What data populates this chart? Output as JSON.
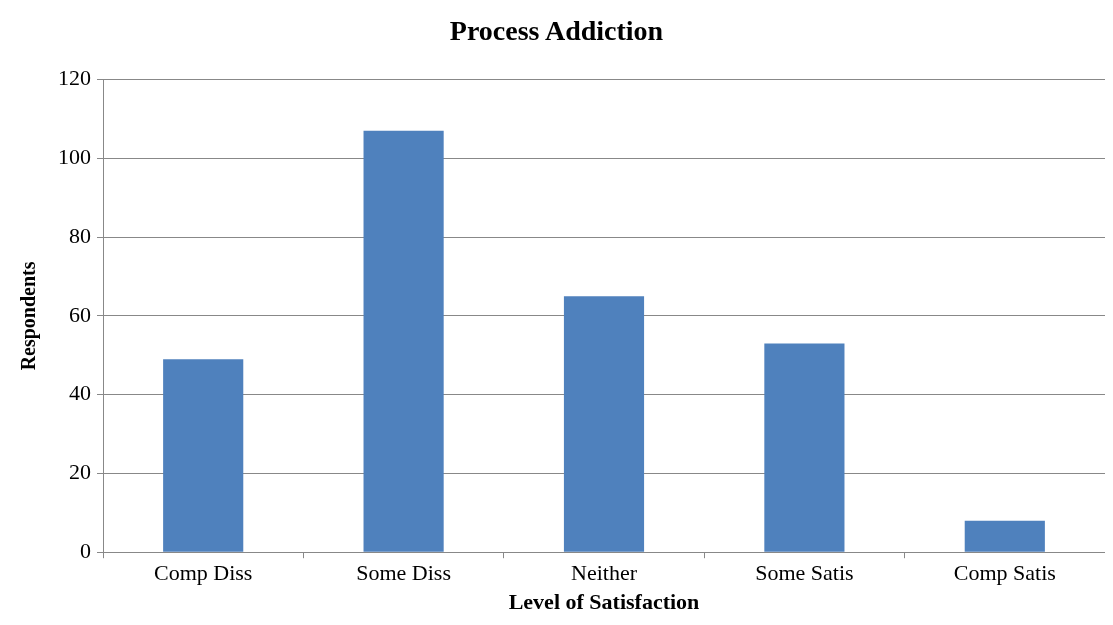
{
  "chart_data": {
    "type": "bar",
    "title": "Process Addiction",
    "xlabel": "Level of Satisfaction",
    "ylabel": "Respondents",
    "categories": [
      "Comp Diss",
      "Some Diss",
      "Neither",
      "Some Satis",
      "Comp Satis"
    ],
    "values": [
      49,
      107,
      65,
      53,
      8
    ],
    "color": "#4f81bd",
    "ylim": [
      0,
      120
    ],
    "yticks": [
      0,
      20,
      40,
      60,
      80,
      100,
      120
    ],
    "grid": "y",
    "legend": false
  }
}
